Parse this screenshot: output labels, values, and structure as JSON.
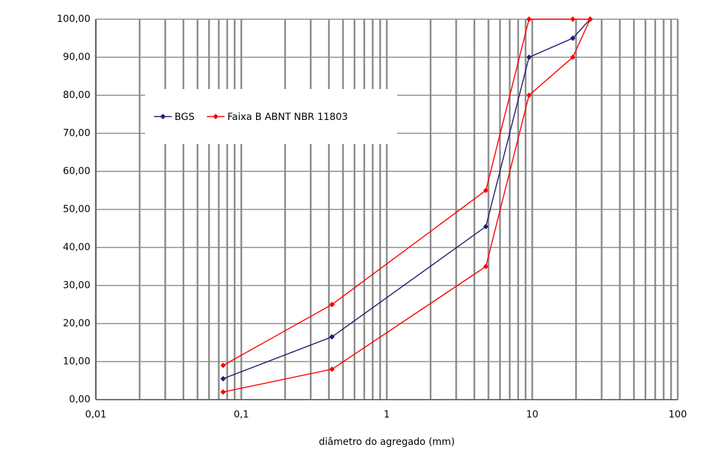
{
  "chart_data": {
    "type": "line",
    "x_label": "diâmetro do agregado (mm)",
    "x": [
      0.075,
      0.42,
      4.8,
      9.5,
      19,
      25
    ],
    "series": [
      {
        "name": "BGS",
        "color": "#1f1f6e",
        "values": [
          5.5,
          16.5,
          45.5,
          90,
          95,
          100
        ]
      },
      {
        "name": "Faixa B ABNT NBR 11803",
        "color": "#ff0000",
        "values": [
          9,
          25,
          55,
          100,
          100,
          100
        ]
      },
      {
        "color": "#ff0000",
        "values": [
          2,
          8,
          35,
          80,
          90,
          100
        ]
      }
    ],
    "xlim": [
      0.01,
      100
    ],
    "log_x": true,
    "minor_grid": true,
    "xticks": [
      {
        "value": 0.01,
        "label": "0,01"
      },
      {
        "value": 0.1,
        "label": "0,1"
      },
      1,
      10,
      100
    ],
    "ylim": [
      0,
      100
    ],
    "yticks": [
      {
        "value": 0,
        "label": "0,00"
      },
      {
        "value": 10,
        "label": "10,00"
      },
      {
        "value": 20,
        "label": "20,00"
      },
      {
        "value": 30,
        "label": "30,00"
      },
      {
        "value": 40,
        "label": "40,00"
      },
      {
        "value": 50,
        "label": "50,00"
      },
      {
        "value": 60,
        "label": "60,00"
      },
      {
        "value": 70,
        "label": "70,00"
      },
      {
        "value": 80,
        "label": "80,00"
      },
      {
        "value": 90,
        "label": "90,00"
      },
      {
        "value": 100,
        "label": "100,00"
      }
    ],
    "grid": true
  }
}
